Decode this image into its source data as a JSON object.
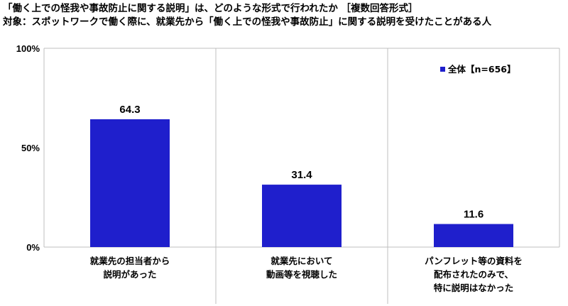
{
  "header": {
    "title": "「働く上での怪我や事故防止に関する説明」は、どのような形式で行われたか ［複数回答形式］",
    "subtitle": "対象：スポットワークで働く際に、就業先から「働く上での怪我や事故防止」に関する説明を受けたことがある人"
  },
  "chart_data": {
    "type": "bar",
    "categories": [
      [
        "就業先の担当者から",
        "説明があった"
      ],
      [
        "就業先において",
        "動画等を視聴した"
      ],
      [
        "パンフレット等の資料を",
        "配布されたのみで、",
        "特に説明はなかった"
      ]
    ],
    "series": [
      {
        "name": "全体【n=656】",
        "values": [
          64.3,
          31.4,
          11.6
        ],
        "color": "#1f1fcc"
      }
    ],
    "ylim": [
      0,
      100
    ],
    "yticks": [
      "0%",
      "50%",
      "100%"
    ],
    "ytick_values": [
      0,
      50,
      100
    ],
    "grid": false,
    "legend_position": "top-right"
  }
}
